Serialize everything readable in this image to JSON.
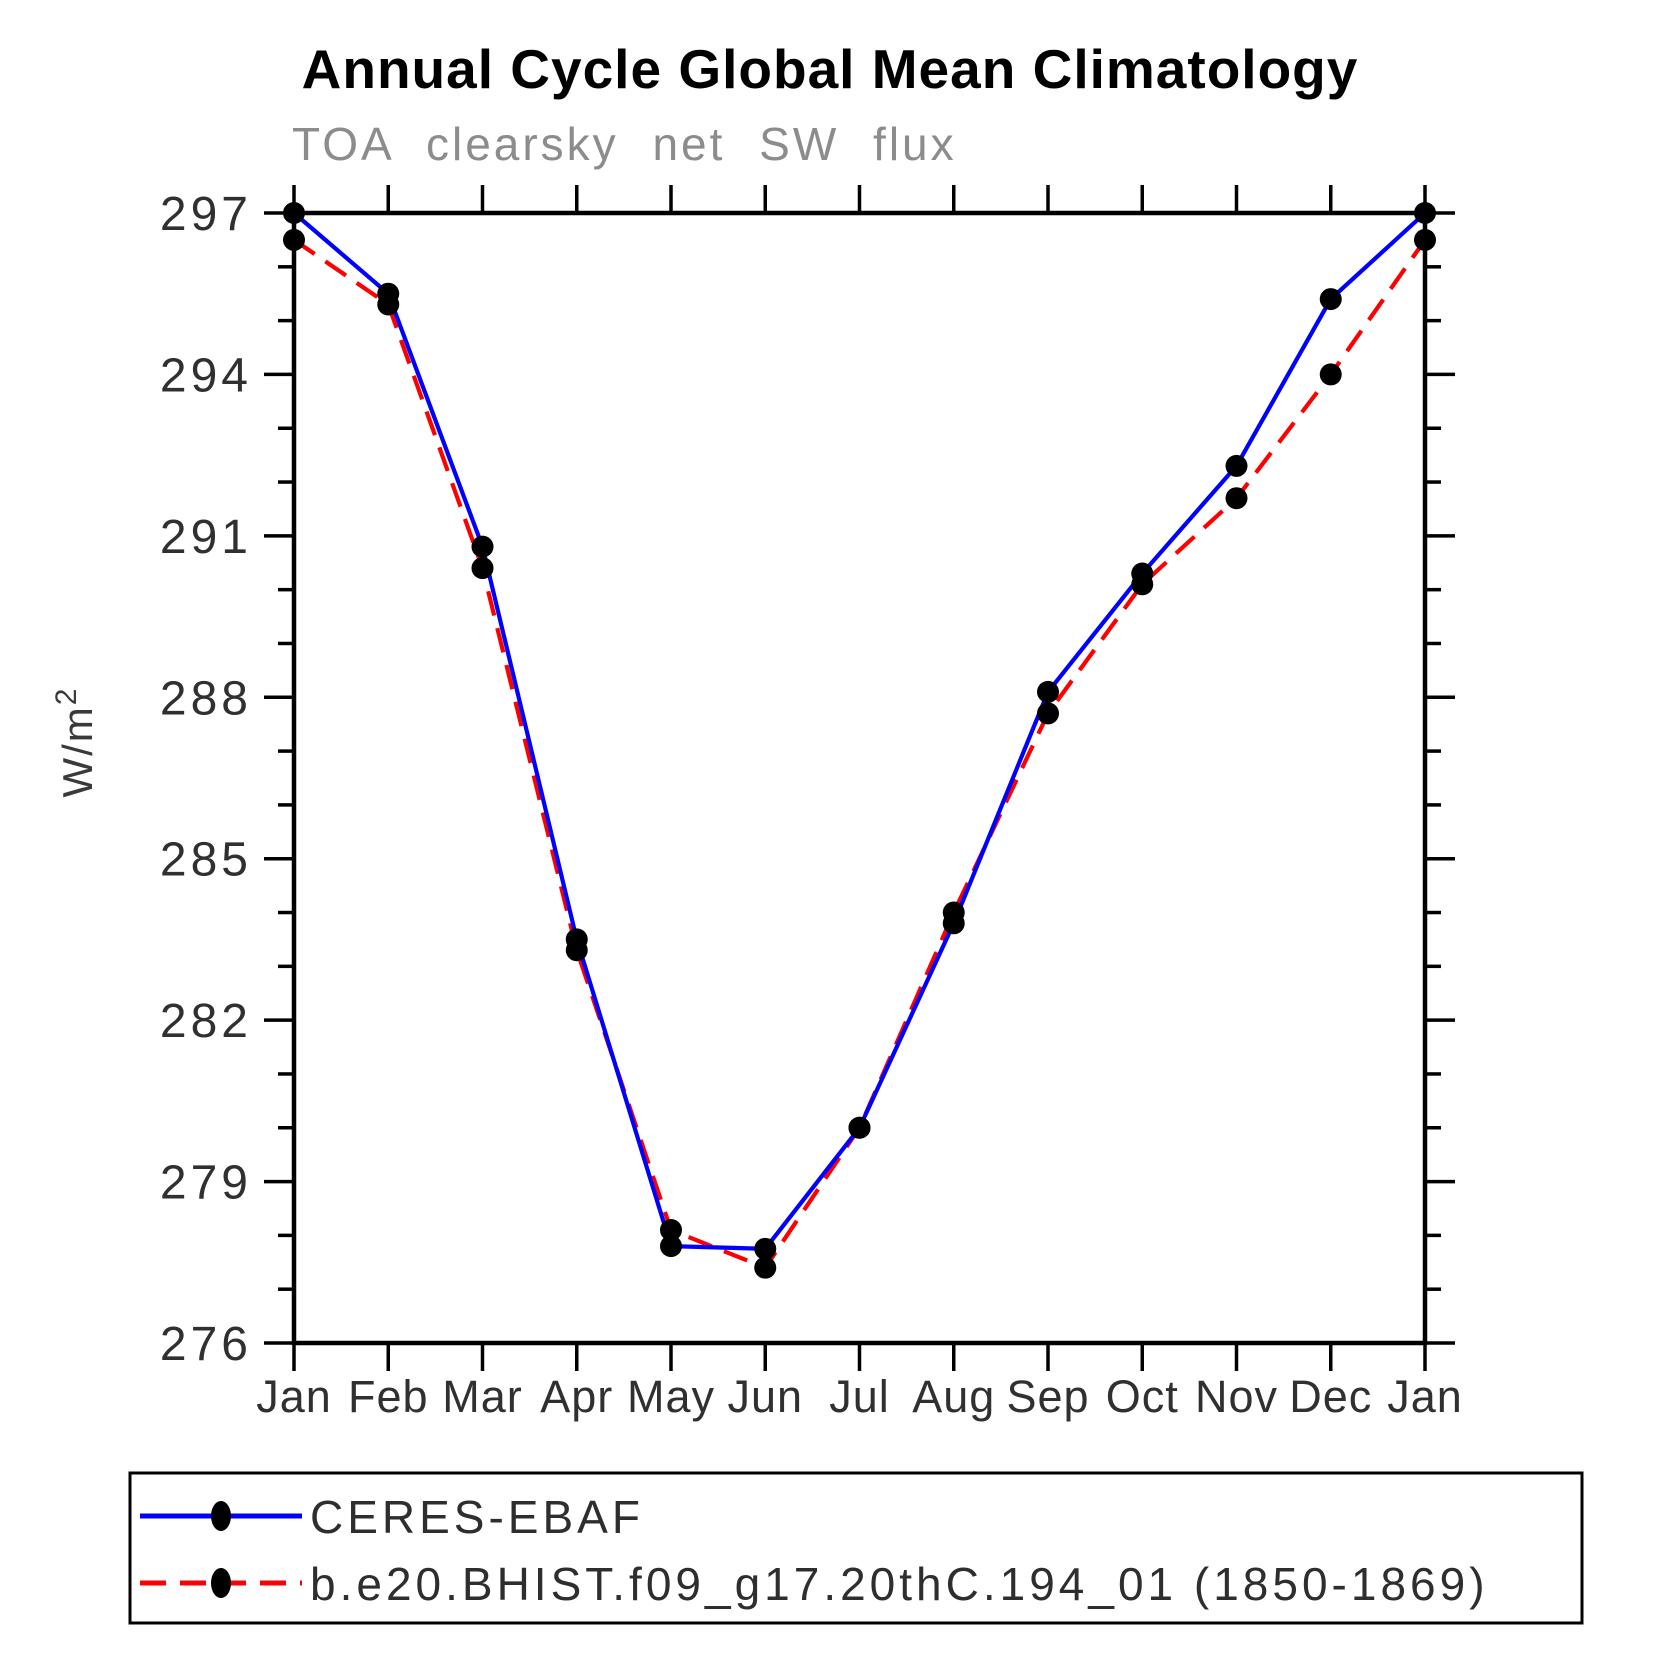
{
  "chart_data": {
    "type": "line",
    "title": "Annual Cycle Global Mean Climatology",
    "subtitle": "TOA clearsky net SW flux",
    "ylabel": "W/m",
    "ylabel_superscript": "2",
    "xlabel": "",
    "categories": [
      "Jan",
      "Feb",
      "Mar",
      "Apr",
      "May",
      "Jun",
      "Jul",
      "Aug",
      "Sep",
      "Oct",
      "Nov",
      "Dec",
      "Jan"
    ],
    "y_ticks_major": [
      276,
      279,
      282,
      285,
      288,
      291,
      294,
      297
    ],
    "y_minor_step": 1,
    "ylim": [
      276,
      297
    ],
    "grid": "off",
    "legend_position": "bottom",
    "marker": "filled-circle",
    "marker_color": "#000000",
    "series": [
      {
        "name": "CERES-EBAF",
        "color": "#0000ff",
        "style": "solid",
        "values": [
          297.0,
          295.5,
          290.8,
          283.5,
          277.8,
          277.75,
          280.0,
          283.8,
          288.1,
          290.3,
          292.3,
          295.4,
          297.0
        ]
      },
      {
        "name": "b.e20.BHIST.f09_g17.20thC.194_01 (1850-1869)",
        "color": "#ff0000",
        "style": "dashed",
        "values": [
          296.5,
          295.3,
          290.4,
          283.3,
          278.1,
          277.4,
          280.0,
          284.0,
          287.7,
          290.1,
          291.7,
          294.0,
          296.5
        ]
      }
    ]
  }
}
